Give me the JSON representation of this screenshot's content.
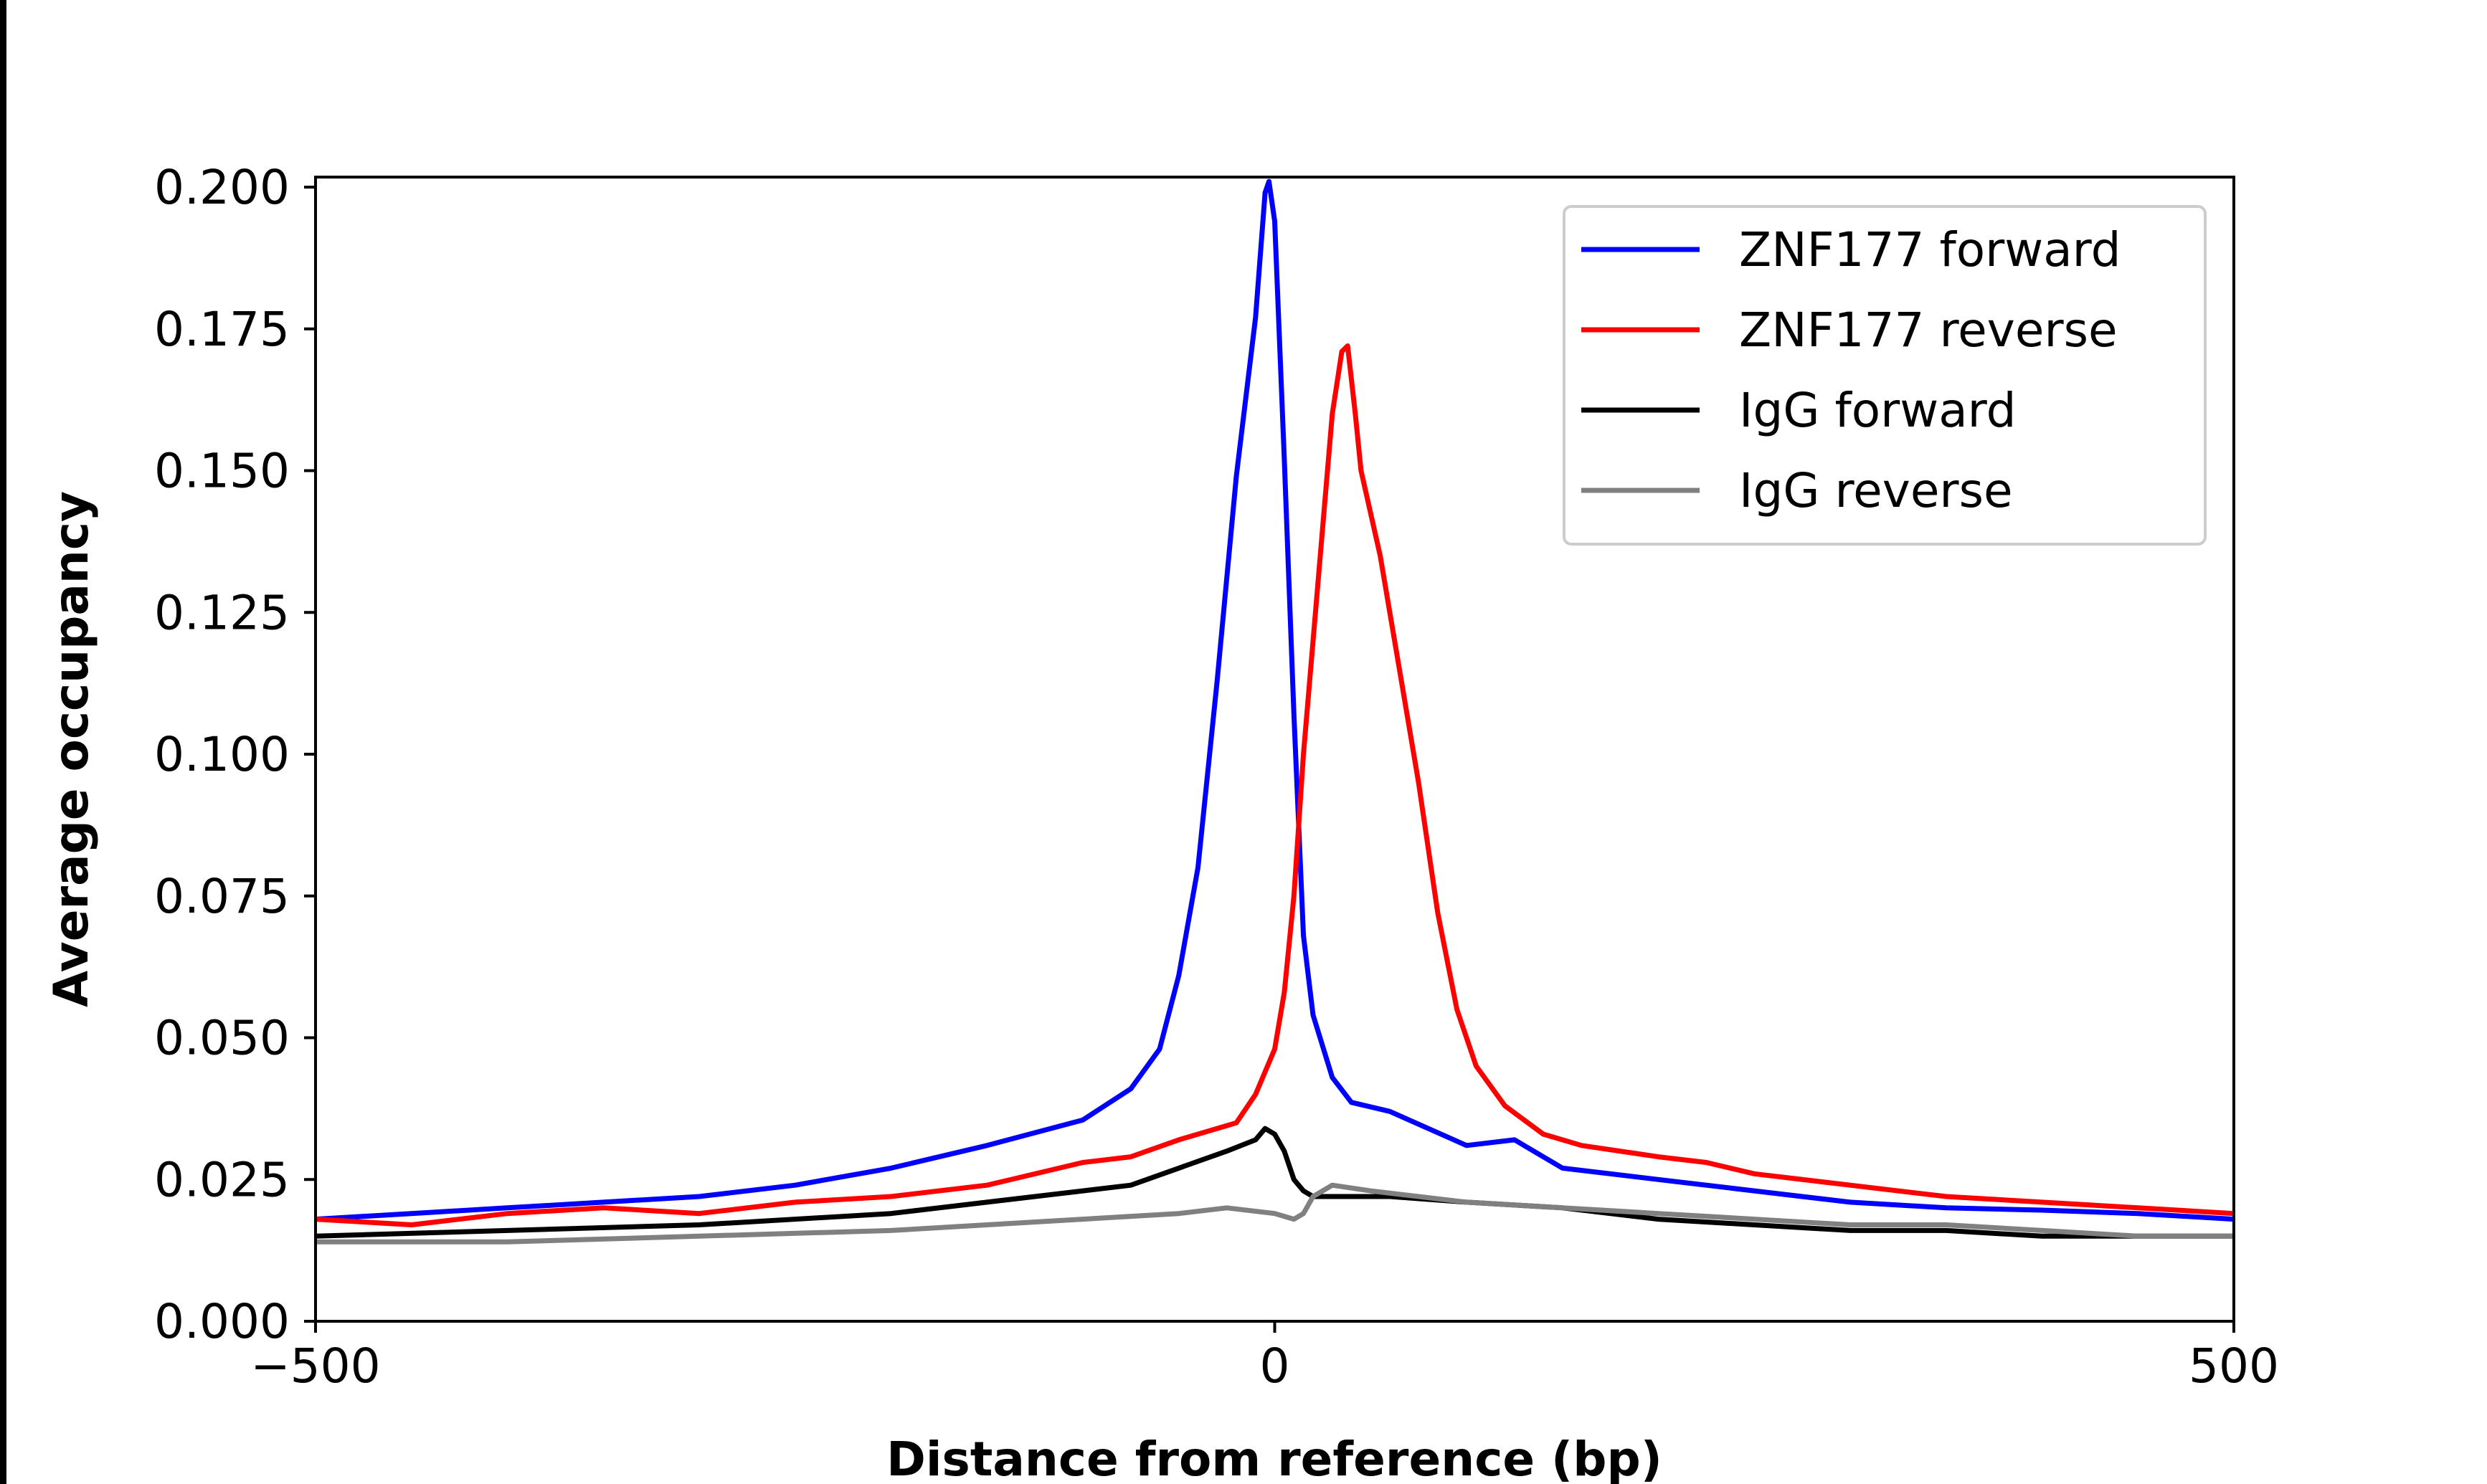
{
  "chart_data": {
    "type": "line",
    "title": "",
    "xlabel": "Distance from reference (bp)",
    "ylabel": "Average occupancy",
    "xlim": [
      -500,
      500
    ],
    "ylim": [
      0,
      0.2
    ],
    "xticks": [
      -500,
      0,
      500
    ],
    "xtick_labels": [
      "−500",
      "0",
      "500"
    ],
    "yticks": [
      0,
      0.025,
      0.05,
      0.075,
      0.1,
      0.125,
      0.15,
      0.175,
      0.2
    ],
    "ytick_labels": [
      "0.000",
      "0.025",
      "0.050",
      "0.075",
      "0.100",
      "0.125",
      "0.150",
      "0.175",
      "0.200"
    ],
    "grid": false,
    "legend_position": "top-right",
    "series": [
      {
        "name": "ZNF177 forward",
        "color": "#0000ff",
        "x": [
          -500,
          -450,
          -400,
          -350,
          -300,
          -250,
          -200,
          -150,
          -100,
          -75,
          -60,
          -50,
          -40,
          -30,
          -20,
          -10,
          -5,
          -3,
          0,
          5,
          10,
          15,
          20,
          30,
          40,
          60,
          80,
          100,
          125,
          150,
          200,
          250,
          300,
          350,
          400,
          450,
          500
        ],
        "y": [
          0.018,
          0.019,
          0.02,
          0.021,
          0.022,
          0.024,
          0.027,
          0.031,
          0.0355,
          0.041,
          0.048,
          0.061,
          0.08,
          0.113,
          0.149,
          0.177,
          0.199,
          0.201,
          0.194,
          0.152,
          0.107,
          0.068,
          0.054,
          0.043,
          0.0386,
          0.037,
          0.034,
          0.031,
          0.032,
          0.027,
          0.025,
          0.023,
          0.021,
          0.02,
          0.0196,
          0.019,
          0.018
        ]
      },
      {
        "name": "ZNF177 reverse",
        "color": "#ff0000",
        "x": [
          -500,
          -450,
          -400,
          -350,
          -300,
          -250,
          -200,
          -150,
          -100,
          -75,
          -50,
          -30,
          -20,
          -10,
          0,
          5,
          10,
          15,
          20,
          25,
          30,
          35,
          38,
          42,
          45,
          55,
          65,
          75,
          85,
          95,
          105,
          120,
          140,
          160,
          200,
          225,
          250,
          300,
          350,
          400,
          450,
          500
        ],
        "y": [
          0.018,
          0.017,
          0.019,
          0.02,
          0.019,
          0.021,
          0.022,
          0.024,
          0.028,
          0.029,
          0.032,
          0.034,
          0.035,
          0.04,
          0.048,
          0.058,
          0.075,
          0.1,
          0.12,
          0.14,
          0.16,
          0.171,
          0.172,
          0.16,
          0.15,
          0.135,
          0.115,
          0.095,
          0.072,
          0.055,
          0.045,
          0.038,
          0.033,
          0.031,
          0.029,
          0.028,
          0.026,
          0.024,
          0.022,
          0.021,
          0.02,
          0.019
        ]
      },
      {
        "name": "IgG forward",
        "color": "#000000",
        "x": [
          -500,
          -400,
          -300,
          -200,
          -150,
          -100,
          -75,
          -50,
          -25,
          -10,
          -5,
          0,
          5,
          10,
          15,
          20,
          40,
          60,
          100,
          150,
          200,
          250,
          300,
          350,
          400,
          450,
          500
        ],
        "y": [
          0.015,
          0.016,
          0.017,
          0.019,
          0.021,
          0.023,
          0.024,
          0.027,
          0.03,
          0.032,
          0.034,
          0.033,
          0.03,
          0.025,
          0.023,
          0.022,
          0.022,
          0.022,
          0.021,
          0.02,
          0.018,
          0.017,
          0.016,
          0.016,
          0.015,
          0.015,
          0.015
        ]
      },
      {
        "name": "IgG reverse",
        "color": "#808080",
        "x": [
          -500,
          -400,
          -300,
          -200,
          -150,
          -100,
          -50,
          -25,
          0,
          10,
          15,
          20,
          30,
          50,
          100,
          150,
          200,
          250,
          300,
          350,
          400,
          450,
          500
        ],
        "y": [
          0.014,
          0.014,
          0.015,
          0.016,
          0.017,
          0.018,
          0.019,
          0.02,
          0.019,
          0.018,
          0.019,
          0.022,
          0.024,
          0.023,
          0.021,
          0.02,
          0.019,
          0.018,
          0.017,
          0.017,
          0.016,
          0.015,
          0.015
        ]
      }
    ]
  }
}
